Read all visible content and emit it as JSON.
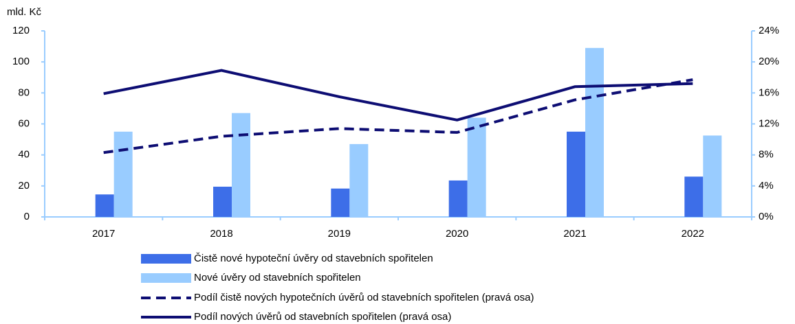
{
  "chart_data": {
    "type": "bar",
    "y_axis_label": "mld. Kč",
    "categories": [
      "2017",
      "2018",
      "2019",
      "2020",
      "2021",
      "2022"
    ],
    "ylim": [
      0,
      120
    ],
    "yticks": [
      0,
      20,
      40,
      60,
      80,
      100,
      120
    ],
    "y2lim": [
      0,
      24
    ],
    "y2ticks": [
      {
        "value": 0,
        "label": "0%"
      },
      {
        "value": 4,
        "label": "4%"
      },
      {
        "value": 8,
        "label": "8%"
      },
      {
        "value": 12,
        "label": "12%"
      },
      {
        "value": 16,
        "label": "16%"
      },
      {
        "value": 20,
        "label": "20%"
      },
      {
        "value": 24,
        "label": "24%"
      }
    ],
    "legend": "bottom",
    "series": [
      {
        "name": "Čistě nové hypoteční úvěry od stavebních spořitelen",
        "type": "bar",
        "color": "#3d6ee8",
        "values": [
          14.5,
          19.5,
          18.3,
          23.5,
          55,
          26
        ]
      },
      {
        "name": "Nové úvěry od stavebních spořitelen",
        "type": "bar",
        "color": "#99ccff",
        "values": [
          55,
          67,
          47,
          64,
          109,
          52.5
        ]
      },
      {
        "name": "Podíl čistě nových hypotečních úvěrů od stavebních spořitelen (pravá osa)",
        "type": "line",
        "dashed": true,
        "axis": "y2",
        "color": "#0d0d73",
        "values": [
          8.3,
          10.4,
          11.4,
          10.9,
          15.1,
          17.7
        ]
      },
      {
        "name": "Podíl nových úvěrů od stavebních spořitelen (pravá osa)",
        "type": "line",
        "dashed": false,
        "axis": "y2",
        "color": "#0d0d73",
        "values": [
          15.9,
          18.9,
          15.5,
          12.5,
          16.8,
          17.2
        ]
      }
    ]
  }
}
